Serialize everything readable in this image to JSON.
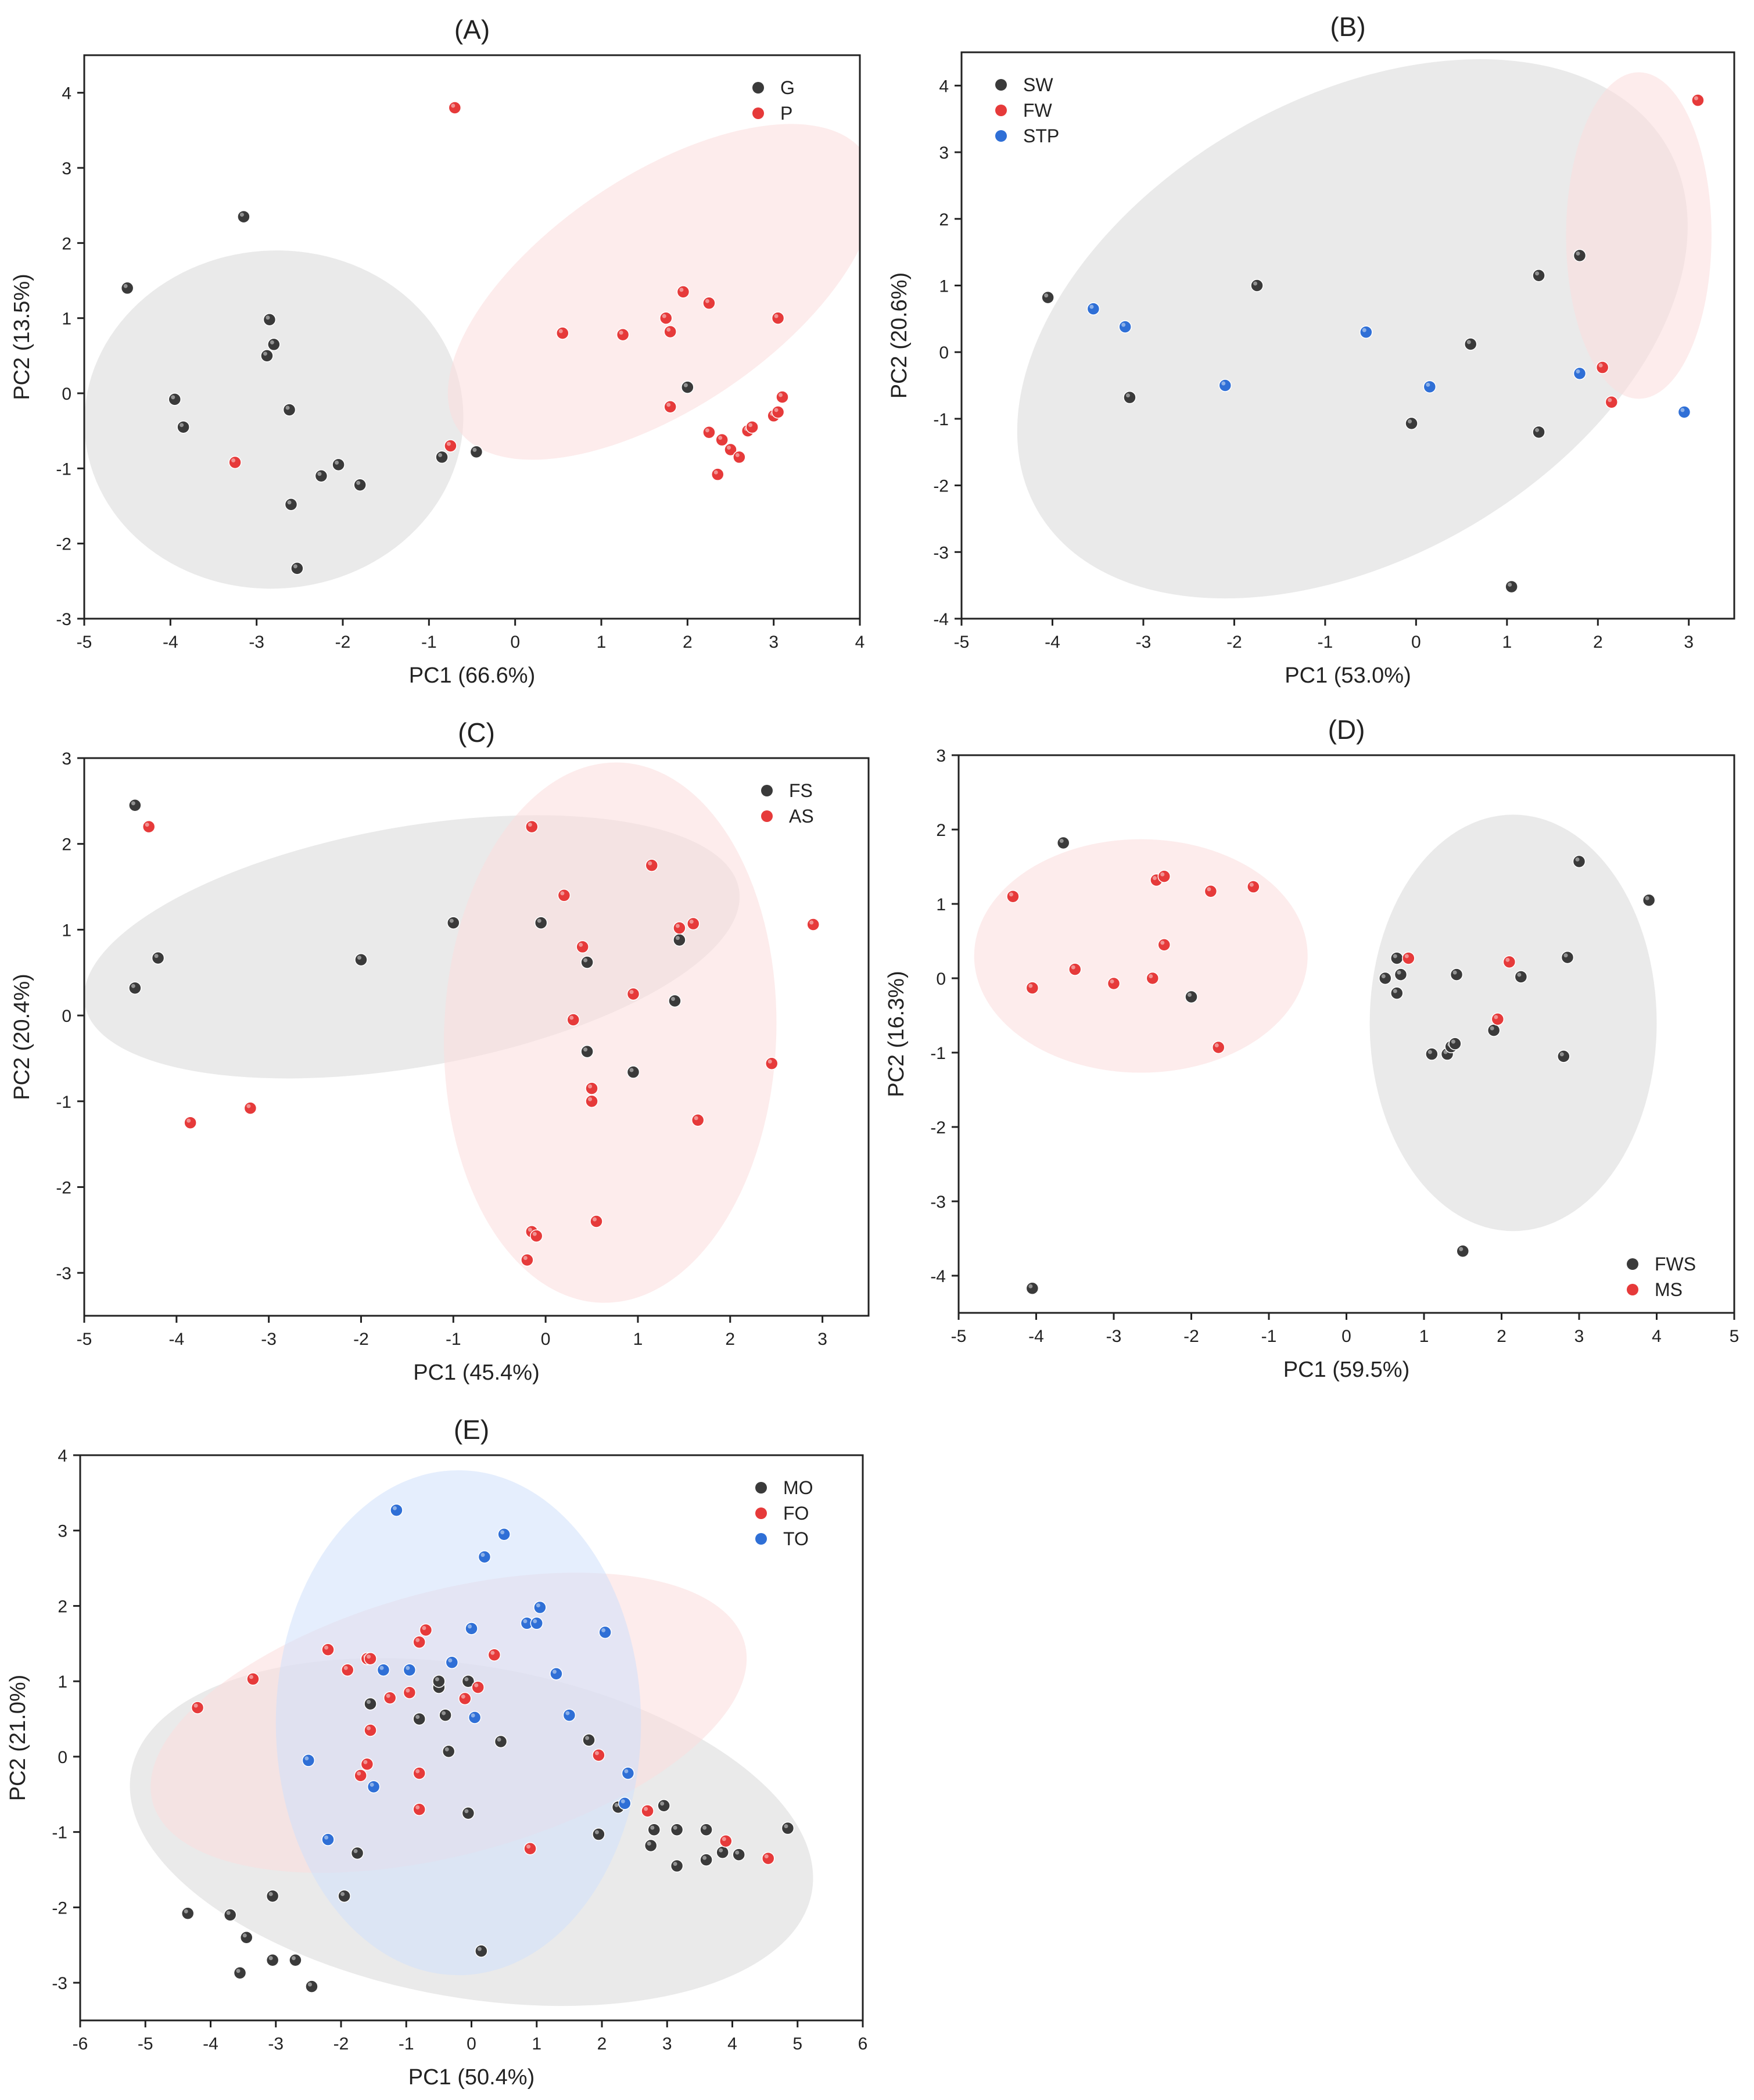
{
  "chart_data": [
    {
      "type": "scatter",
      "title": "(A)",
      "xlabel": "PC1 (66.6%)",
      "ylabel": "PC2 (13.5%)",
      "xlim": [
        -5,
        4
      ],
      "ylim": [
        -3,
        4.5
      ],
      "xticks": [
        "-5",
        "-4",
        "-3",
        "-2",
        "-1",
        "0",
        "1",
        "2",
        "3",
        "4"
      ],
      "yticks": [
        "-3",
        "-2",
        "-1",
        "0",
        "1",
        "2",
        "3",
        "4"
      ],
      "legend_position": "top-right",
      "ellipses": [
        {
          "series": "G",
          "cx": -2.8,
          "cy": -0.35,
          "rx": 2.2,
          "ry": 2.25,
          "angle": -4
        },
        {
          "series": "P",
          "cx": 1.7,
          "cy": 1.35,
          "rx": 2.85,
          "ry": 1.55,
          "angle": -34
        }
      ],
      "series": [
        {
          "name": "G",
          "color": "#3a3a3a",
          "points": [
            [
              -4.5,
              1.4
            ],
            [
              -3.15,
              2.35
            ],
            [
              -3.95,
              -0.08
            ],
            [
              -3.85,
              -0.45
            ],
            [
              -2.85,
              0.98
            ],
            [
              -2.8,
              0.65
            ],
            [
              -2.88,
              0.5
            ],
            [
              -2.62,
              -0.22
            ],
            [
              -2.6,
              -1.48
            ],
            [
              -2.53,
              -2.33
            ],
            [
              -2.25,
              -1.1
            ],
            [
              -2.05,
              -0.95
            ],
            [
              -1.8,
              -1.22
            ],
            [
              -0.85,
              -0.85
            ],
            [
              -0.45,
              -0.78
            ],
            [
              2.0,
              0.08
            ]
          ]
        },
        {
          "name": "P",
          "color": "#e63a3a",
          "points": [
            [
              -0.7,
              3.8
            ],
            [
              -3.25,
              -0.92
            ],
            [
              -0.75,
              -0.7
            ],
            [
              0.55,
              0.8
            ],
            [
              1.25,
              0.78
            ],
            [
              1.75,
              1.0
            ],
            [
              1.8,
              0.82
            ],
            [
              1.95,
              1.35
            ],
            [
              2.25,
              1.2
            ],
            [
              3.05,
              1.0
            ],
            [
              1.8,
              -0.18
            ],
            [
              2.25,
              -0.52
            ],
            [
              2.4,
              -0.62
            ],
            [
              2.5,
              -0.75
            ],
            [
              2.6,
              -0.85
            ],
            [
              2.35,
              -1.08
            ],
            [
              2.7,
              -0.5
            ],
            [
              2.75,
              -0.45
            ],
            [
              3.0,
              -0.3
            ],
            [
              3.05,
              -0.25
            ],
            [
              3.1,
              -0.05
            ]
          ]
        }
      ]
    },
    {
      "type": "scatter",
      "title": "(B)",
      "xlabel": "PC1 (53.0%)",
      "ylabel": "PC2 (20.6%)",
      "xlim": [
        -5,
        3.5
      ],
      "ylim": [
        -4,
        4.5
      ],
      "xticks": [
        "-5",
        "-4",
        "-3",
        "-2",
        "-1",
        "0",
        "1",
        "2",
        "3"
      ],
      "yticks": [
        "-4",
        "-3",
        "-2",
        "-1",
        "0",
        "1",
        "2",
        "3",
        "4"
      ],
      "legend_position": "top-left",
      "ellipses": [
        {
          "series": "SW",
          "cx": -0.7,
          "cy": 0.35,
          "rx": 4.0,
          "ry": 3.45,
          "angle": -30
        },
        {
          "series": "FW",
          "cx": 2.45,
          "cy": 1.75,
          "rx": 0.8,
          "ry": 2.45,
          "angle": 0
        }
      ],
      "series": [
        {
          "name": "SW",
          "color": "#3a3a3a",
          "points": [
            [
              -4.05,
              0.82
            ],
            [
              -3.15,
              -0.68
            ],
            [
              -1.75,
              1.0
            ],
            [
              -0.05,
              -1.07
            ],
            [
              0.6,
              0.12
            ],
            [
              1.35,
              1.15
            ],
            [
              1.35,
              -1.2
            ],
            [
              1.8,
              1.45
            ],
            [
              1.05,
              -3.52
            ]
          ]
        },
        {
          "name": "FW",
          "color": "#e63a3a",
          "points": [
            [
              2.05,
              -0.23
            ],
            [
              2.15,
              -0.75
            ],
            [
              3.1,
              3.78
            ]
          ]
        },
        {
          "name": "STP",
          "color": "#2f6fd6",
          "points": [
            [
              -3.55,
              0.65
            ],
            [
              -3.2,
              0.38
            ],
            [
              -2.1,
              -0.5
            ],
            [
              -0.55,
              0.3
            ],
            [
              0.15,
              -0.52
            ],
            [
              1.8,
              -0.32
            ],
            [
              2.95,
              -0.9
            ]
          ]
        }
      ]
    },
    {
      "type": "scatter",
      "title": "(C)",
      "xlabel": "PC1 (45.4%)",
      "ylabel": "PC2 (20.4%)",
      "xlim": [
        -5,
        3.5
      ],
      "ylim": [
        -3.5,
        3
      ],
      "xticks": [
        "-5",
        "-4",
        "-3",
        "-2",
        "-1",
        "0",
        "1",
        "2",
        "3"
      ],
      "yticks": [
        "-3",
        "-2",
        "-1",
        "0",
        "1",
        "2",
        "3"
      ],
      "legend_position": "top-right",
      "ellipses": [
        {
          "series": "FS",
          "cx": -1.45,
          "cy": 0.8,
          "rx": 3.6,
          "ry": 1.4,
          "angle": -10
        },
        {
          "series": "AS",
          "cx": 0.7,
          "cy": -0.2,
          "rx": 1.8,
          "ry": 3.15,
          "angle": 2
        }
      ],
      "series": [
        {
          "name": "FS",
          "color": "#3a3a3a",
          "points": [
            [
              -4.45,
              2.45
            ],
            [
              -4.2,
              0.67
            ],
            [
              -4.45,
              0.32
            ],
            [
              -2.0,
              0.65
            ],
            [
              -1.0,
              1.08
            ],
            [
              -0.05,
              1.08
            ],
            [
              0.45,
              0.62
            ],
            [
              0.45,
              -0.42
            ],
            [
              0.95,
              -0.66
            ],
            [
              1.45,
              0.88
            ],
            [
              1.4,
              0.17
            ]
          ]
        },
        {
          "name": "AS",
          "color": "#e63a3a",
          "points": [
            [
              -4.3,
              2.2
            ],
            [
              -3.85,
              -1.25
            ],
            [
              -3.2,
              -1.08
            ],
            [
              -0.15,
              2.2
            ],
            [
              0.2,
              1.4
            ],
            [
              0.4,
              0.8
            ],
            [
              1.15,
              1.75
            ],
            [
              0.3,
              -0.05
            ],
            [
              0.95,
              0.25
            ],
            [
              0.5,
              -0.85
            ],
            [
              0.5,
              -1.0
            ],
            [
              1.45,
              1.02
            ],
            [
              1.6,
              1.07
            ],
            [
              2.9,
              1.06
            ],
            [
              2.45,
              -0.56
            ],
            [
              1.65,
              -1.22
            ],
            [
              -0.15,
              -2.52
            ],
            [
              -0.1,
              -2.57
            ],
            [
              -0.2,
              -2.85
            ],
            [
              0.55,
              -2.4
            ]
          ]
        }
      ]
    },
    {
      "type": "scatter",
      "title": "(D)",
      "xlabel": "PC1 (59.5%)",
      "ylabel": "PC2 (16.3%)",
      "xlim": [
        -5,
        5
      ],
      "ylim": [
        -4.5,
        3
      ],
      "xticks": [
        "-5",
        "-4",
        "-3",
        "-2",
        "-1",
        "0",
        "1",
        "2",
        "3",
        "4",
        "5"
      ],
      "yticks": [
        "-4",
        "-3",
        "-2",
        "-1",
        "0",
        "1",
        "2",
        "3"
      ],
      "legend_position": "bottom-right",
      "ellipses": [
        {
          "series": "FWS",
          "cx": 2.15,
          "cy": -0.6,
          "rx": 1.85,
          "ry": 2.8,
          "angle": 0
        },
        {
          "series": "MS",
          "cx": -2.65,
          "cy": 0.3,
          "rx": 2.15,
          "ry": 1.57,
          "angle": 0
        }
      ],
      "series": [
        {
          "name": "FWS",
          "color": "#3a3a3a",
          "points": [
            [
              -3.65,
              1.82
            ],
            [
              -2.0,
              -0.25
            ],
            [
              0.65,
              0.27
            ],
            [
              0.65,
              -0.2
            ],
            [
              0.5,
              0.0
            ],
            [
              0.7,
              0.05
            ],
            [
              1.1,
              -1.02
            ],
            [
              1.3,
              -1.02
            ],
            [
              1.35,
              -0.92
            ],
            [
              1.4,
              -0.88
            ],
            [
              1.42,
              0.05
            ],
            [
              1.9,
              -0.7
            ],
            [
              2.25,
              0.02
            ],
            [
              2.85,
              0.28
            ],
            [
              2.8,
              -1.05
            ],
            [
              3.0,
              1.57
            ],
            [
              3.9,
              1.05
            ],
            [
              1.5,
              -3.67
            ],
            [
              -4.05,
              -4.17
            ]
          ]
        },
        {
          "name": "MS",
          "color": "#e63a3a",
          "points": [
            [
              -4.3,
              1.1
            ],
            [
              -4.05,
              -0.13
            ],
            [
              -3.5,
              0.12
            ],
            [
              -3.0,
              -0.07
            ],
            [
              -2.45,
              1.32
            ],
            [
              -2.35,
              1.37
            ],
            [
              -2.35,
              0.45
            ],
            [
              -2.5,
              0.0
            ],
            [
              -1.75,
              1.17
            ],
            [
              -1.2,
              1.23
            ],
            [
              -1.65,
              -0.93
            ],
            [
              0.8,
              0.27
            ],
            [
              2.1,
              0.22
            ],
            [
              1.95,
              -0.55
            ]
          ]
        }
      ]
    },
    {
      "type": "scatter",
      "title": "(E)",
      "xlabel": "PC1 (50.4%)",
      "ylabel": "PC2 (21.0%)",
      "xlim": [
        -6,
        6
      ],
      "ylim": [
        -3.5,
        4
      ],
      "xticks": [
        "-6",
        "-5",
        "-4",
        "-3",
        "-2",
        "-1",
        "0",
        "1",
        "2",
        "3",
        "4",
        "5",
        "6"
      ],
      "yticks": [
        "-3",
        "-2",
        "-1",
        "0",
        "1",
        "2",
        "3",
        "4"
      ],
      "legend_position": "top-right",
      "ellipses": [
        {
          "series": "MO",
          "cx": 0.0,
          "cy": -1.0,
          "rx": 5.3,
          "ry": 2.2,
          "angle": 10
        },
        {
          "series": "FO",
          "cx": -0.35,
          "cy": 0.45,
          "rx": 4.7,
          "ry": 1.75,
          "angle": -15
        },
        {
          "series": "TO",
          "cx": -0.2,
          "cy": 0.45,
          "rx": 2.8,
          "ry": 3.35,
          "angle": 0
        }
      ],
      "series": [
        {
          "name": "MO",
          "color": "#3a3a3a",
          "points": [
            [
              -4.35,
              -2.08
            ],
            [
              -3.7,
              -2.1
            ],
            [
              -3.55,
              -2.87
            ],
            [
              -3.45,
              -2.4
            ],
            [
              -3.05,
              -1.85
            ],
            [
              -3.05,
              -2.7
            ],
            [
              -2.7,
              -2.7
            ],
            [
              -2.45,
              -3.05
            ],
            [
              -1.95,
              -1.85
            ],
            [
              -1.75,
              -1.28
            ],
            [
              -1.55,
              0.7
            ],
            [
              -0.8,
              0.5
            ],
            [
              -0.5,
              0.92
            ],
            [
              -0.5,
              1.0
            ],
            [
              -0.4,
              0.55
            ],
            [
              -0.35,
              0.07
            ],
            [
              -0.05,
              1.0
            ],
            [
              -0.05,
              -0.75
            ],
            [
              0.15,
              -2.58
            ],
            [
              0.45,
              0.2
            ],
            [
              1.8,
              0.22
            ],
            [
              1.95,
              -1.03
            ],
            [
              2.25,
              -0.67
            ],
            [
              2.75,
              -1.18
            ],
            [
              2.8,
              -0.97
            ],
            [
              2.95,
              -0.65
            ],
            [
              3.15,
              -1.45
            ],
            [
              3.15,
              -0.97
            ],
            [
              3.6,
              -1.37
            ],
            [
              3.6,
              -0.97
            ],
            [
              3.85,
              -1.27
            ],
            [
              4.1,
              -1.3
            ],
            [
              4.85,
              -0.95
            ]
          ]
        },
        {
          "name": "FO",
          "color": "#e63a3a",
          "points": [
            [
              -4.2,
              0.65
            ],
            [
              -3.35,
              1.03
            ],
            [
              -2.2,
              1.42
            ],
            [
              -1.9,
              1.15
            ],
            [
              -1.6,
              1.3
            ],
            [
              -1.55,
              1.3
            ],
            [
              -1.55,
              0.35
            ],
            [
              -1.6,
              -0.1
            ],
            [
              -1.7,
              -0.25
            ],
            [
              -1.25,
              0.78
            ],
            [
              -0.95,
              0.85
            ],
            [
              -0.8,
              1.52
            ],
            [
              -0.7,
              1.68
            ],
            [
              -0.8,
              -0.22
            ],
            [
              -0.8,
              -0.7
            ],
            [
              -0.1,
              0.77
            ],
            [
              0.1,
              0.92
            ],
            [
              0.35,
              1.35
            ],
            [
              0.9,
              -1.22
            ],
            [
              1.95,
              0.02
            ],
            [
              2.7,
              -0.72
            ],
            [
              3.9,
              -1.12
            ],
            [
              4.55,
              -1.35
            ]
          ]
        },
        {
          "name": "TO",
          "color": "#2f6fd6",
          "points": [
            [
              -1.15,
              3.27
            ],
            [
              0.2,
              2.65
            ],
            [
              0.5,
              2.95
            ],
            [
              -2.5,
              -0.05
            ],
            [
              -2.2,
              -1.1
            ],
            [
              -1.5,
              -0.4
            ],
            [
              -1.35,
              1.15
            ],
            [
              -0.95,
              1.15
            ],
            [
              -0.3,
              1.25
            ],
            [
              0.0,
              1.7
            ],
            [
              0.05,
              0.52
            ],
            [
              0.85,
              1.77
            ],
            [
              1.0,
              1.77
            ],
            [
              1.05,
              1.98
            ],
            [
              1.3,
              1.1
            ],
            [
              1.5,
              0.55
            ],
            [
              2.05,
              1.65
            ],
            [
              2.35,
              -0.62
            ],
            [
              2.4,
              -0.22
            ]
          ]
        }
      ]
    }
  ]
}
